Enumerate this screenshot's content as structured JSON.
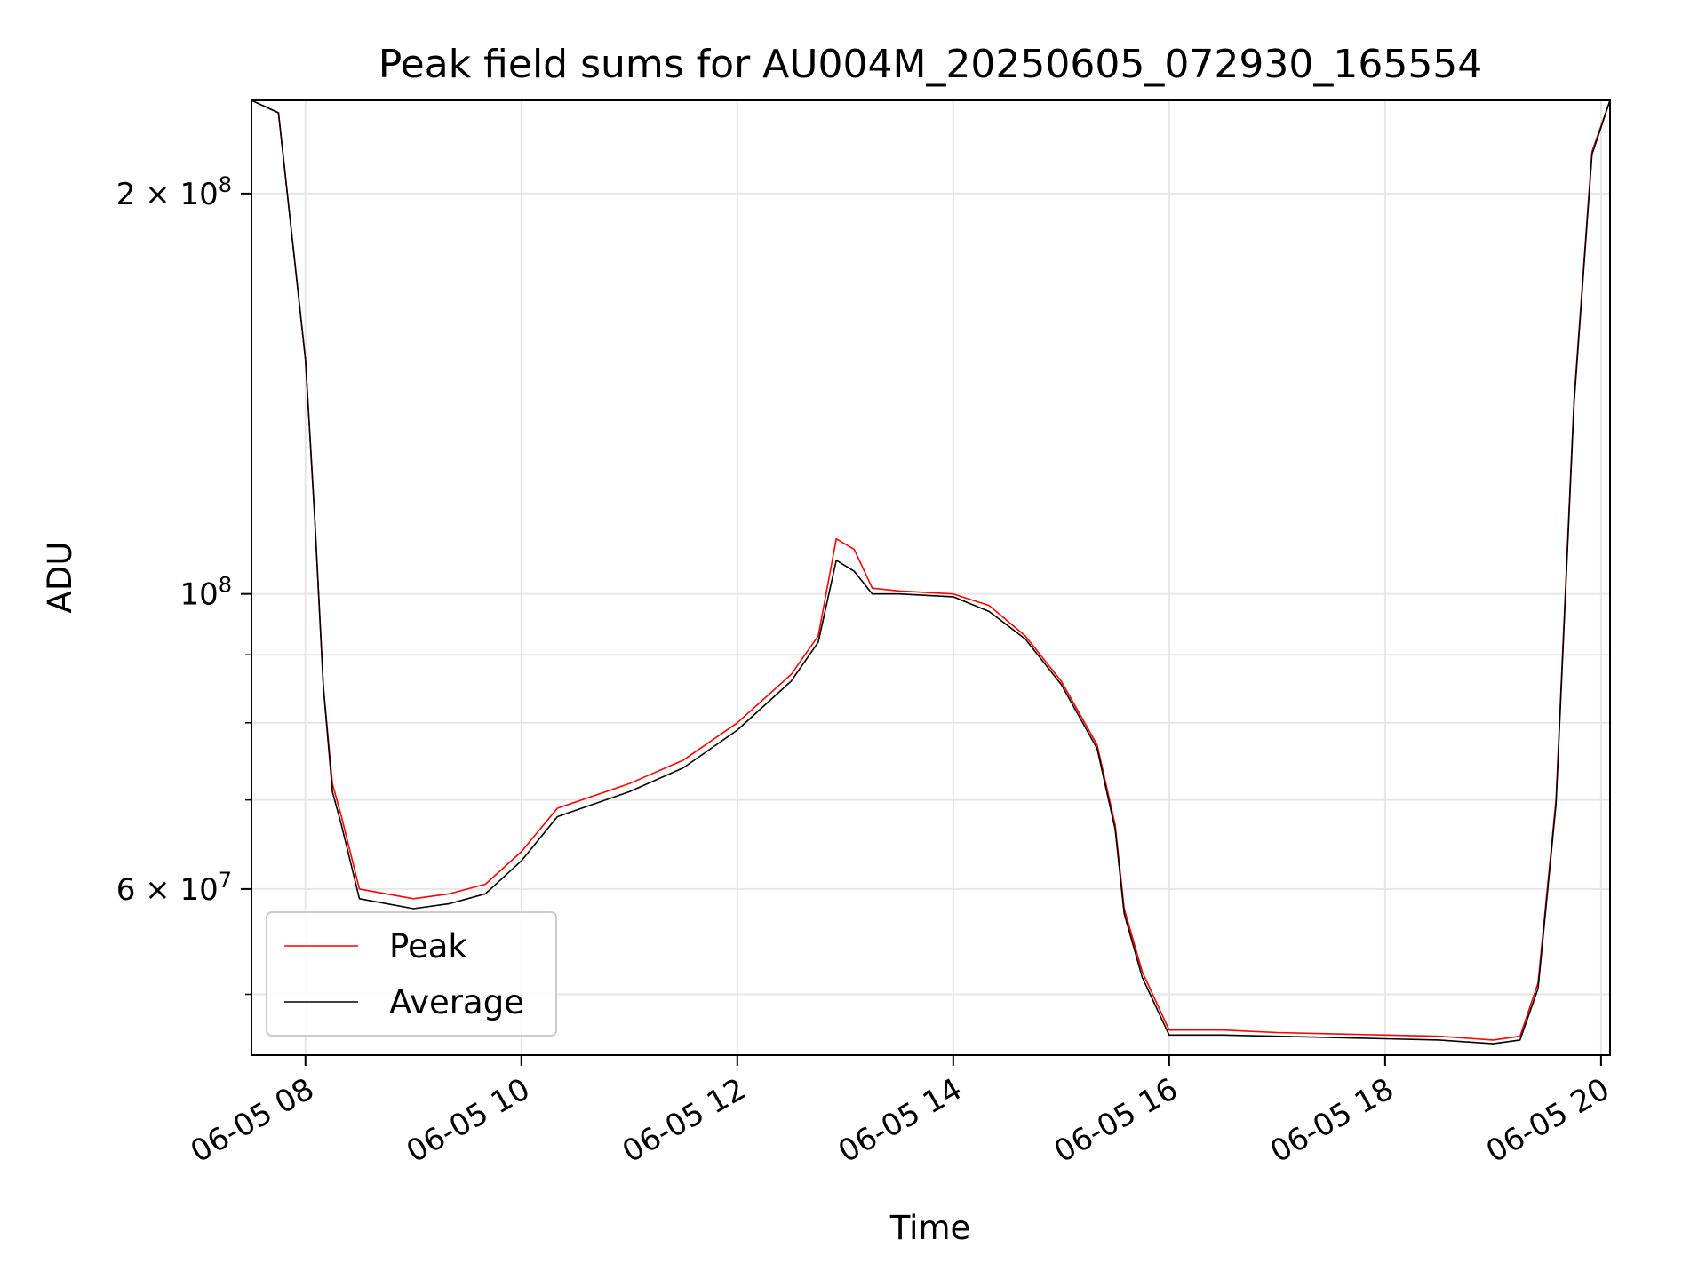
{
  "chart_data": {
    "type": "line",
    "title": "Peak field sums for AU004M_20250605_072930_165554",
    "xlabel": "Time",
    "ylabel": "ADU",
    "yscale": "log",
    "xlim": [
      "2025-06-05 07:30",
      "2025-06-05 20:05"
    ],
    "ylim": [
      45000000,
      235000000
    ],
    "grid": true,
    "legend_position": "lower-left",
    "x_ticks": [
      {
        "value": "2025-06-05 08:00",
        "label": "06-05 08"
      },
      {
        "value": "2025-06-05 10:00",
        "label": "06-05 10"
      },
      {
        "value": "2025-06-05 12:00",
        "label": "06-05 12"
      },
      {
        "value": "2025-06-05 14:00",
        "label": "06-05 14"
      },
      {
        "value": "2025-06-05 16:00",
        "label": "06-05 16"
      },
      {
        "value": "2025-06-05 18:00",
        "label": "06-05 18"
      },
      {
        "value": "2025-06-05 20:00",
        "label": "06-05 20"
      }
    ],
    "y_major_ticks": [
      {
        "value": 100000000,
        "base": "10",
        "exp": "8"
      },
      {
        "value": 200000000,
        "mantissa": "2",
        "base": "10",
        "exp": "8"
      },
      {
        "value": 60000000,
        "mantissa": "6",
        "base": "10",
        "exp": "7"
      }
    ],
    "y_minor_ticks": [
      50000000,
      70000000,
      80000000,
      90000000
    ],
    "series": [
      {
        "name": "Peak",
        "color": "#ff0000",
        "x": [
          "2025-06-05 07:30",
          "2025-06-05 07:45",
          "2025-06-05 08:00",
          "2025-06-05 08:05",
          "2025-06-05 08:10",
          "2025-06-05 08:15",
          "2025-06-05 08:20",
          "2025-06-05 08:30",
          "2025-06-05 09:00",
          "2025-06-05 09:20",
          "2025-06-05 09:40",
          "2025-06-05 10:00",
          "2025-06-05 10:20",
          "2025-06-05 11:00",
          "2025-06-05 11:30",
          "2025-06-05 12:00",
          "2025-06-05 12:30",
          "2025-06-05 12:45",
          "2025-06-05 12:55",
          "2025-06-05 13:05",
          "2025-06-05 13:15",
          "2025-06-05 13:30",
          "2025-06-05 14:00",
          "2025-06-05 14:20",
          "2025-06-05 14:40",
          "2025-06-05 15:00",
          "2025-06-05 15:20",
          "2025-06-05 15:30",
          "2025-06-05 15:35",
          "2025-06-05 15:45",
          "2025-06-05 16:00",
          "2025-06-05 16:30",
          "2025-06-05 17:00",
          "2025-06-05 17:30",
          "2025-06-05 18:00",
          "2025-06-05 18:30",
          "2025-06-05 19:00",
          "2025-06-05 19:15",
          "2025-06-05 19:25",
          "2025-06-05 19:35",
          "2025-06-05 19:45",
          "2025-06-05 19:55",
          "2025-06-05 20:05"
        ],
        "y": [
          235000000,
          230000000,
          150000000,
          115000000,
          85000000,
          72000000,
          68000000,
          60000000,
          59000000,
          59500000,
          60500000,
          64000000,
          69000000,
          72000000,
          75000000,
          80000000,
          87000000,
          93000000,
          110000000,
          108000000,
          101000000,
          100500000,
          100000000,
          98000000,
          93000000,
          86000000,
          77000000,
          67000000,
          58000000,
          52000000,
          47000000,
          47000000,
          46800000,
          46700000,
          46600000,
          46500000,
          46200000,
          46500000,
          51000000,
          70000000,
          140000000,
          215000000,
          235000000
        ]
      },
      {
        "name": "Average",
        "color": "#000000",
        "x": [
          "2025-06-05 07:30",
          "2025-06-05 07:45",
          "2025-06-05 08:00",
          "2025-06-05 08:05",
          "2025-06-05 08:10",
          "2025-06-05 08:15",
          "2025-06-05 08:20",
          "2025-06-05 08:30",
          "2025-06-05 09:00",
          "2025-06-05 09:20",
          "2025-06-05 09:40",
          "2025-06-05 10:00",
          "2025-06-05 10:20",
          "2025-06-05 11:00",
          "2025-06-05 11:30",
          "2025-06-05 12:00",
          "2025-06-05 12:30",
          "2025-06-05 12:45",
          "2025-06-05 12:55",
          "2025-06-05 13:05",
          "2025-06-05 13:15",
          "2025-06-05 13:30",
          "2025-06-05 14:00",
          "2025-06-05 14:20",
          "2025-06-05 14:40",
          "2025-06-05 15:00",
          "2025-06-05 15:20",
          "2025-06-05 15:30",
          "2025-06-05 15:35",
          "2025-06-05 15:45",
          "2025-06-05 16:00",
          "2025-06-05 16:30",
          "2025-06-05 17:00",
          "2025-06-05 17:30",
          "2025-06-05 18:00",
          "2025-06-05 18:30",
          "2025-06-05 19:00",
          "2025-06-05 19:15",
          "2025-06-05 19:25",
          "2025-06-05 19:35",
          "2025-06-05 19:45",
          "2025-06-05 19:55",
          "2025-06-05 20:05"
        ],
        "y": [
          235000000,
          230000000,
          150000000,
          115000000,
          85000000,
          71000000,
          67000000,
          59000000,
          58000000,
          58500000,
          59500000,
          63000000,
          68000000,
          71000000,
          74000000,
          79000000,
          86000000,
          92000000,
          106000000,
          104000000,
          100000000,
          100000000,
          99500000,
          97000000,
          92500000,
          85500000,
          76500000,
          66500000,
          57500000,
          51500000,
          46600000,
          46600000,
          46500000,
          46400000,
          46300000,
          46200000,
          45900000,
          46200000,
          50500000,
          69500000,
          139000000,
          214000000,
          235000000
        ]
      }
    ]
  }
}
